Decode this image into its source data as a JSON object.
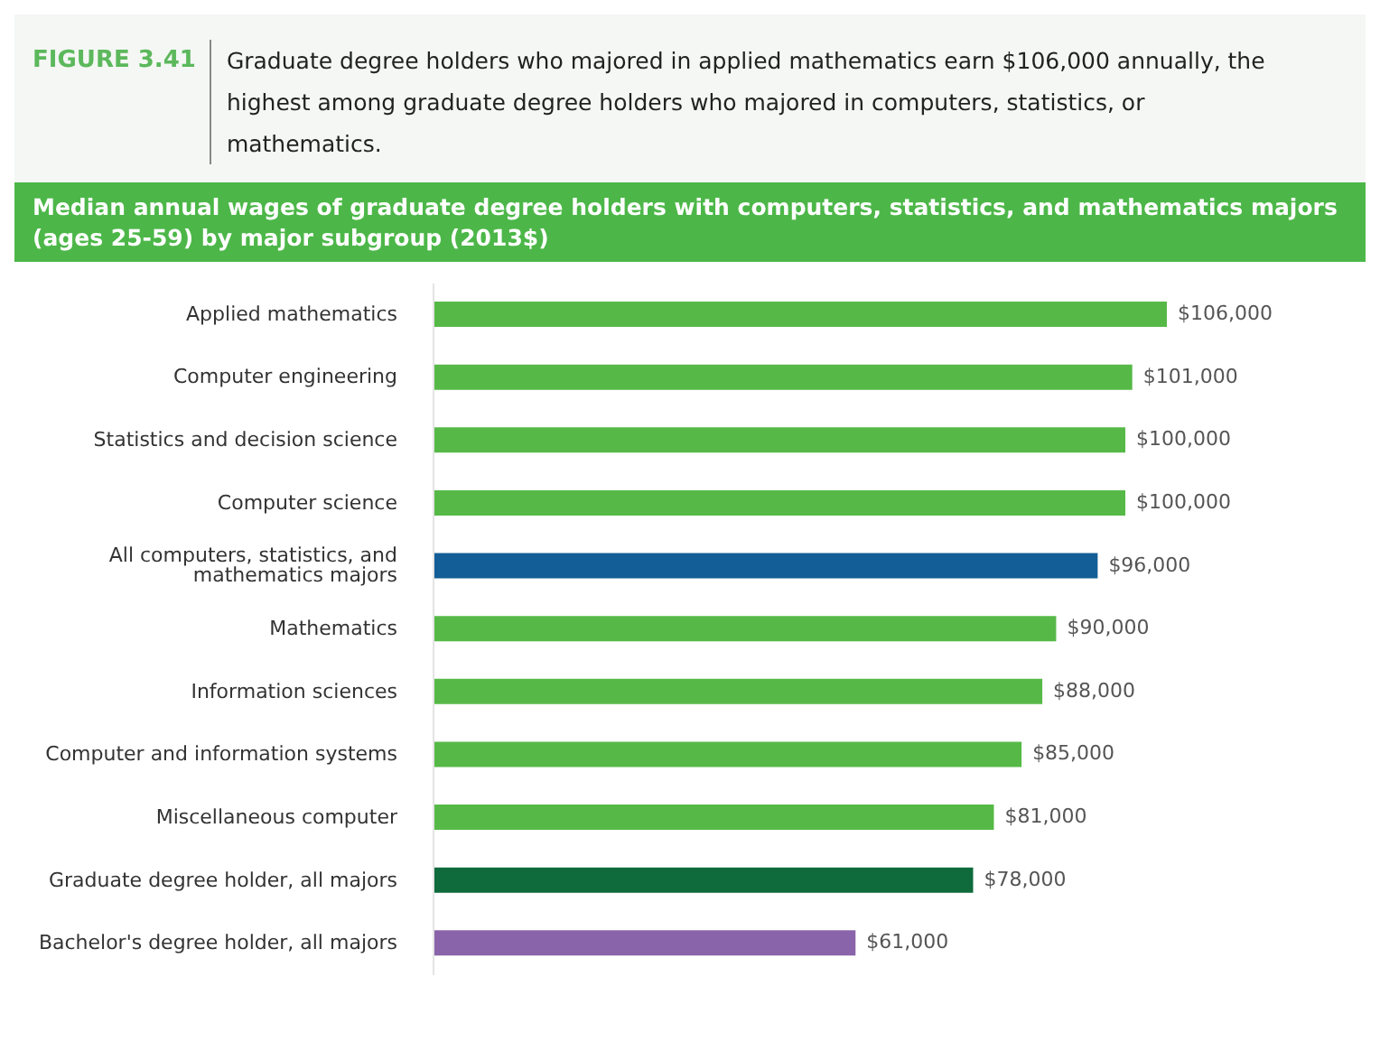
{
  "chart_data": {
    "type": "bar",
    "orientation": "horizontal",
    "annotations": [
      "FIGURE 3.41"
    ],
    "title": "Graduate degree holders who majored in applied mathematics earn $106,000 annually, the highest among graduate degree holders who majored in computers, statistics, or mathematics.",
    "subtitle": "Median annual wages of graduate degree holders with computers, statistics, and mathematics majors (ages 25-59) by major subgroup (2013$)",
    "categories": [
      "Applied mathematics",
      "Computer engineering",
      "Statistics and decision science",
      "Computer science",
      "All computers, statistics, and mathematics majors",
      "Mathematics",
      "Information sciences",
      "Computer and information systems",
      "Miscellaneous computer",
      "Graduate degree holder, all majors",
      "Bachelor's degree holder, all majors"
    ],
    "values": [
      106000,
      101000,
      100000,
      100000,
      96000,
      90000,
      88000,
      85000,
      81000,
      78000,
      61000
    ],
    "value_labels": [
      "$106,000",
      "$101,000",
      "$100,000",
      "$100,000",
      "$96,000",
      "$90,000",
      "$88,000",
      "$85,000",
      "$81,000",
      "$78,000",
      "$61,000"
    ],
    "colors": [
      "#56b947",
      "#56b947",
      "#56b947",
      "#56b947",
      "#135e96",
      "#56b947",
      "#56b947",
      "#56b947",
      "#56b947",
      "#0f6b3c",
      "#8a64aa"
    ],
    "grid": false,
    "legend": false
  }
}
